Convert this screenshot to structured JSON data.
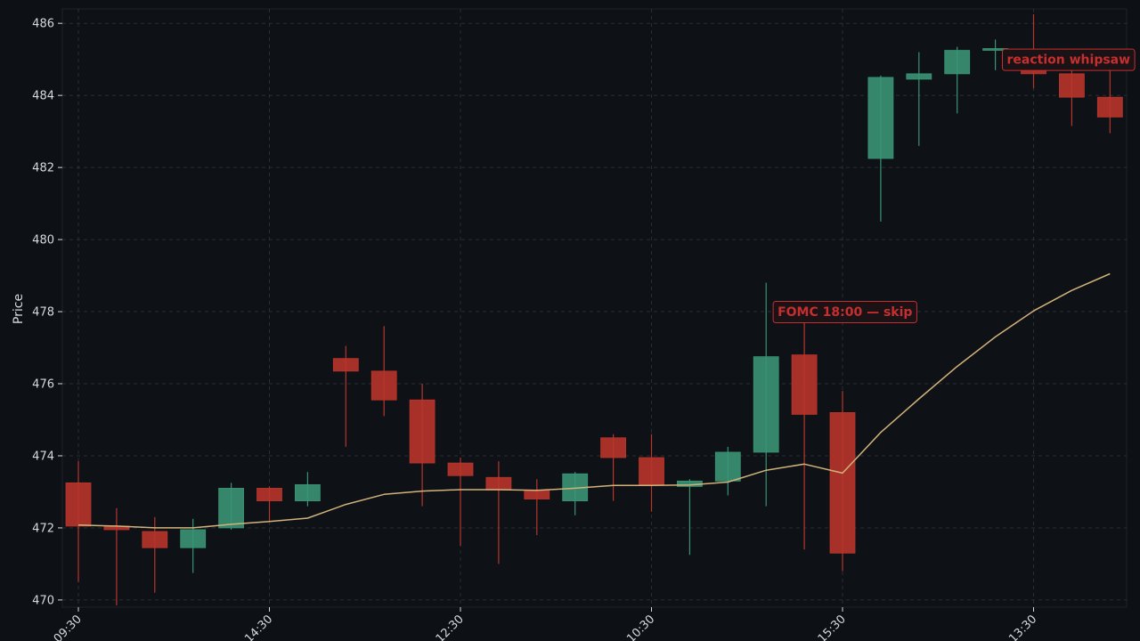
{
  "chart_data": {
    "type": "candlestick",
    "ylabel": "Price",
    "xlabel": "",
    "ylim": [
      469.8,
      486.4
    ],
    "y_ticks": [
      470,
      472,
      474,
      476,
      478,
      480,
      482,
      484,
      486
    ],
    "x_tick_labels": [
      {
        "index": 0,
        "label": "09:30"
      },
      {
        "index": 5,
        "label": "14:30"
      },
      {
        "index": 10,
        "label": "12:30"
      },
      {
        "index": 15,
        "label": "10:30"
      },
      {
        "index": 20,
        "label": "15:30"
      },
      {
        "index": 25,
        "label": "13:30"
      }
    ],
    "grid": true,
    "candles": [
      {
        "open": 473.25,
        "high": 473.85,
        "low": 470.5,
        "close": 472.05
      },
      {
        "open": 472.05,
        "high": 472.55,
        "low": 469.85,
        "close": 471.95
      },
      {
        "open": 471.9,
        "high": 472.3,
        "low": 470.2,
        "close": 471.45
      },
      {
        "open": 471.45,
        "high": 472.25,
        "low": 470.75,
        "close": 471.95
      },
      {
        "open": 472.0,
        "high": 473.25,
        "low": 471.95,
        "close": 473.1
      },
      {
        "open": 473.1,
        "high": 473.15,
        "low": 472.2,
        "close": 472.75
      },
      {
        "open": 472.75,
        "high": 473.55,
        "low": 472.6,
        "close": 473.2
      },
      {
        "open": 476.7,
        "high": 477.05,
        "low": 474.25,
        "close": 476.35
      },
      {
        "open": 476.35,
        "high": 477.6,
        "low": 475.1,
        "close": 475.55
      },
      {
        "open": 475.55,
        "high": 476.0,
        "low": 472.6,
        "close": 473.8
      },
      {
        "open": 473.8,
        "high": 473.95,
        "low": 471.5,
        "close": 473.45
      },
      {
        "open": 473.4,
        "high": 473.85,
        "low": 471.0,
        "close": 473.05
      },
      {
        "open": 473.05,
        "high": 473.35,
        "low": 471.8,
        "close": 472.8
      },
      {
        "open": 472.75,
        "high": 473.55,
        "low": 472.35,
        "close": 473.5
      },
      {
        "open": 474.5,
        "high": 474.6,
        "low": 472.75,
        "close": 473.95
      },
      {
        "open": 473.95,
        "high": 474.6,
        "low": 472.45,
        "close": 473.2
      },
      {
        "open": 473.15,
        "high": 473.35,
        "low": 471.25,
        "close": 473.3
      },
      {
        "open": 473.3,
        "high": 474.25,
        "low": 472.9,
        "close": 474.1
      },
      {
        "open": 474.1,
        "high": 478.8,
        "low": 472.6,
        "close": 476.75
      },
      {
        "open": 476.8,
        "high": 478.1,
        "low": 471.4,
        "close": 475.15
      },
      {
        "open": 475.2,
        "high": 475.8,
        "low": 470.8,
        "close": 471.3
      },
      {
        "open": 482.25,
        "high": 484.55,
        "low": 480.5,
        "close": 484.5
      },
      {
        "open": 484.45,
        "high": 485.2,
        "low": 482.6,
        "close": 484.6
      },
      {
        "open": 484.6,
        "high": 485.35,
        "low": 483.5,
        "close": 485.25
      },
      {
        "open": 485.25,
        "high": 485.55,
        "low": 484.7,
        "close": 485.3
      },
      {
        "open": 485.05,
        "high": 486.25,
        "low": 484.2,
        "close": 484.6
      },
      {
        "open": 484.6,
        "high": 485.05,
        "low": 483.15,
        "close": 483.95
      },
      {
        "open": 483.95,
        "high": 484.7,
        "low": 482.95,
        "close": 483.4
      }
    ],
    "moving_average": [
      472.08,
      472.05,
      472.0,
      472.0,
      472.1,
      472.18,
      472.27,
      472.65,
      472.93,
      473.02,
      473.06,
      473.06,
      473.04,
      473.1,
      473.18,
      473.18,
      473.19,
      473.27,
      473.6,
      473.77,
      473.52,
      474.65,
      475.58,
      476.48,
      477.3,
      478.02,
      478.59,
      479.05
    ],
    "annotations": [
      {
        "text": "FOMC 18:00 — skip",
        "index": 19,
        "y": 478.0
      },
      {
        "text": "reaction whipsaw",
        "index": 25,
        "y": 485.0
      }
    ],
    "colors": {
      "background": "#0d1015",
      "plot_background": "#0e1116",
      "up": "#3a9474",
      "down": "#b8352b",
      "moving_average": "#d2b27a",
      "grid": "#2a2f36",
      "annotation": "#c62f2f",
      "text": "#d6d9de"
    }
  }
}
